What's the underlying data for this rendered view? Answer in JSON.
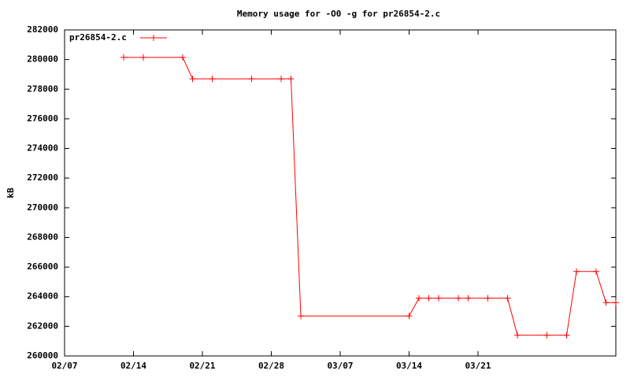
{
  "chart_data": {
    "type": "line",
    "title": "Memory usage for -O0 -g for pr26854-2.c",
    "ylabel": "kB",
    "x": [
      "02/13",
      "02/15",
      "02/19",
      "02/20",
      "02/22",
      "02/26",
      "03/01",
      "03/02",
      "03/03",
      "03/14",
      "03/15",
      "03/16",
      "03/17",
      "03/19",
      "03/20",
      "03/22",
      "03/24",
      "03/25",
      "03/28",
      "03/30",
      "03/31",
      "04/02",
      "04/03",
      "04/04"
    ],
    "series": [
      {
        "name": "pr26854-2.c",
        "color": "#ff0000",
        "values": [
          280150,
          280150,
          280150,
          278700,
          278700,
          278700,
          278700,
          278700,
          262700,
          262700,
          263900,
          263900,
          263900,
          263900,
          263900,
          263900,
          263900,
          261400,
          261400,
          261400,
          265700,
          265700,
          263600,
          263600
        ]
      }
    ],
    "xlim": [
      "02/07",
      "04/04"
    ],
    "xticks": [
      "02/07",
      "02/14",
      "02/21",
      "02/28",
      "03/07",
      "03/14",
      "03/21"
    ],
    "ylim": [
      260000,
      282000
    ],
    "yticks": [
      260000,
      262000,
      264000,
      266000,
      268000,
      270000,
      272000,
      274000,
      276000,
      278000,
      280000,
      282000
    ],
    "legend": "top-left"
  }
}
